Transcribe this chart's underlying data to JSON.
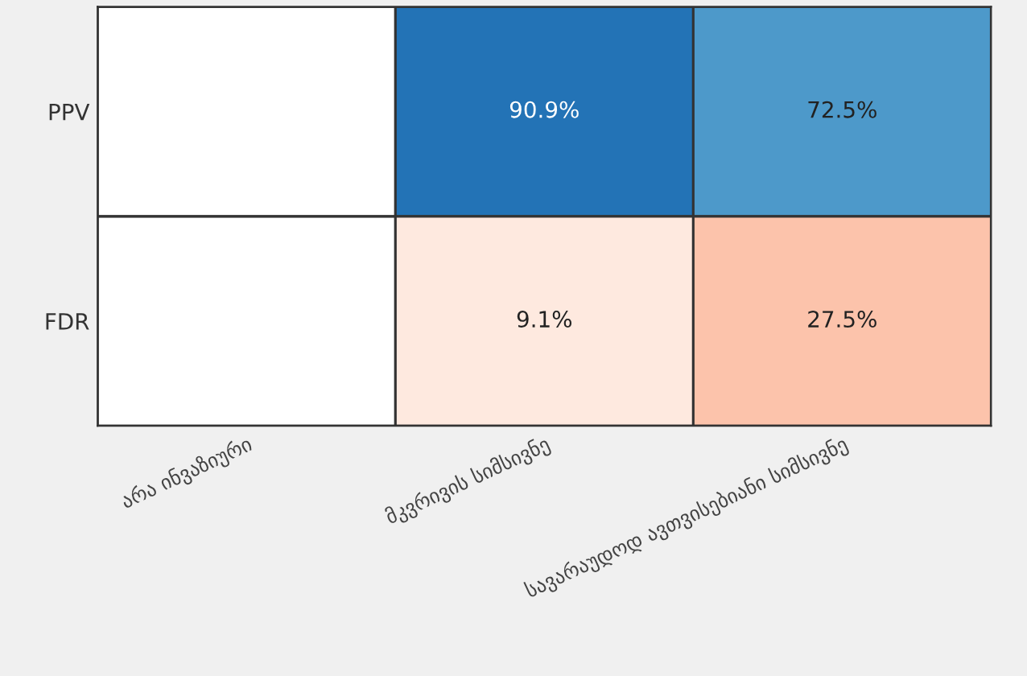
{
  "chart_data": {
    "type": "heatmap",
    "categories": [
      "არა ინვაზიური",
      "მკვრივის სიმსივნე",
      "სავარაუდოდ ავთვისებიანი სიმსივნე"
    ],
    "y_categories": [
      "PPV",
      "FDR"
    ],
    "cells": [
      [
        null,
        90.9,
        72.5
      ],
      [
        null,
        9.1,
        27.5
      ]
    ],
    "cell_labels": [
      [
        null,
        "90.9%",
        "72.5%"
      ],
      [
        null,
        "9.1%",
        "27.5%"
      ]
    ]
  }
}
